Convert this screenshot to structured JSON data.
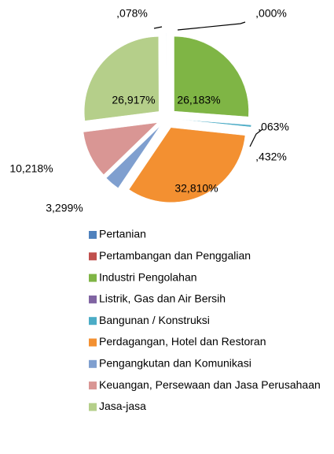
{
  "chart_data": {
    "type": "pie",
    "categories": [
      "Pertanian",
      "Pertambangan dan Penggalian",
      "Industri Pengolahan",
      "Listrik, Gas dan Air Bersih",
      "Bangunan / Konstruksi",
      "Perdagangan, Hotel dan Restoran",
      "Pengangkutan dan Komunikasi",
      "Keuangan, Persewaan dan Jasa Perusahaan",
      "Jasa-jasa"
    ],
    "values": [
      0.078,
      0.0,
      26.183,
      0.063,
      0.432,
      32.81,
      3.299,
      10.218,
      26.917
    ],
    "value_labels": [
      ",078%",
      ",000%",
      "26,183%",
      ",063%",
      ",432%",
      "32,810%",
      "3,299%",
      "10,218%",
      "26,917%"
    ],
    "colors": [
      "#4f81bd",
      "#c0504d",
      "#7fb545",
      "#8064a2",
      "#4bacc6",
      "#f39031",
      "#7f9fcf",
      "#d99694",
      "#b5cf8a"
    ],
    "legend": "bottom"
  }
}
